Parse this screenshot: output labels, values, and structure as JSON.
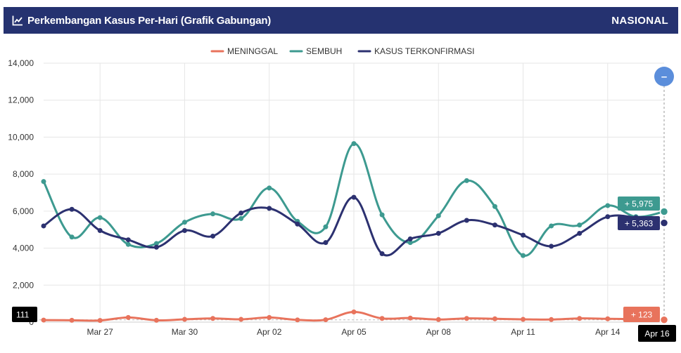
{
  "header": {
    "title": "Perkembangan Kasus Per-Hari (Grafik Gabungan)",
    "region": "NASIONAL",
    "icon": "line-chart-icon"
  },
  "colors": {
    "header_bg": "#253270",
    "meninggal": "#e8735c",
    "sembuh": "#3d9a90",
    "konfirmasi": "#2c3170",
    "zoom_button": "#5b8edb"
  },
  "chart_data": {
    "type": "line",
    "x": [
      "Mar 25",
      "Mar 26",
      "Mar 27",
      "Mar 28",
      "Mar 29",
      "Mar 30",
      "Mar 31",
      "Apr 01",
      "Apr 02",
      "Apr 03",
      "Apr 04",
      "Apr 05",
      "Apr 06",
      "Apr 07",
      "Apr 08",
      "Apr 09",
      "Apr 10",
      "Apr 11",
      "Apr 12",
      "Apr 13",
      "Apr 14",
      "Apr 15",
      "Apr 16"
    ],
    "x_tick_labels": [
      "Mar 27",
      "Mar 30",
      "Apr 02",
      "Apr 05",
      "Apr 08",
      "Apr 11",
      "Apr 14"
    ],
    "y_ticks": [
      0,
      2000,
      4000,
      6000,
      8000,
      10000,
      12000,
      14000
    ],
    "y_tick_labels": [
      "0",
      "2,000",
      "4,000",
      "6,000",
      "8,000",
      "10,000",
      "12,000",
      "14,000"
    ],
    "ylim": [
      0,
      14000
    ],
    "grid": true,
    "legend_position": "top-center",
    "series": [
      {
        "name": "MENINGGAL",
        "key": "meninggal",
        "values": [
          111,
          100,
          90,
          250,
          100,
          150,
          200,
          150,
          250,
          120,
          130,
          550,
          200,
          220,
          140,
          200,
          180,
          150,
          140,
          200,
          180,
          160,
          123
        ]
      },
      {
        "name": "SEMBUH",
        "key": "sembuh",
        "values": [
          7600,
          4600,
          5650,
          4200,
          4250,
          5400,
          5850,
          5600,
          7250,
          5450,
          5150,
          9650,
          5800,
          4300,
          5750,
          7650,
          6250,
          3600,
          5200,
          5250,
          6300,
          5700,
          5975
        ]
      },
      {
        "name": "KASUS TERKONFIRMASI",
        "key": "konfirmasi",
        "values": [
          5200,
          6100,
          4950,
          4450,
          4050,
          4950,
          4650,
          5900,
          6150,
          5300,
          4300,
          6750,
          3700,
          4500,
          4800,
          5500,
          5250,
          4700,
          4100,
          4800,
          5700,
          5650,
          5363
        ]
      }
    ],
    "tooltips": {
      "x_label": "Apr 16",
      "meninggal_left": "111",
      "meninggal_right": "+ 123",
      "sembuh_right": "+ 5,975",
      "konfirmasi_right": "+ 5,363"
    },
    "zoom_button_symbol": "–"
  }
}
